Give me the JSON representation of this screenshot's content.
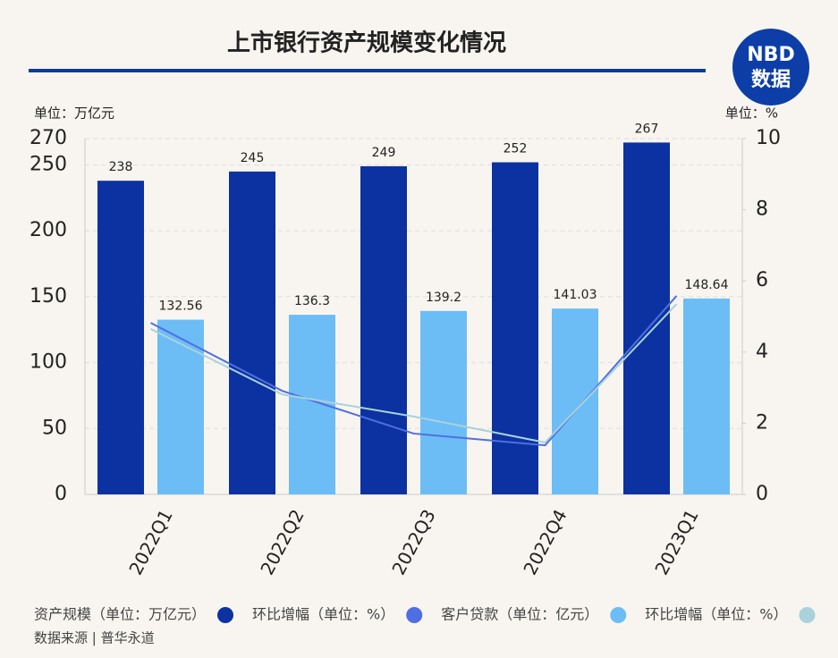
{
  "chart_data": {
    "type": "bar",
    "title": "上市银行资产规模变化情况",
    "y_label": "单位：万亿元",
    "y2_label": "单位：%",
    "categories": [
      "2022Q1",
      "2022Q2",
      "2022Q3",
      "2022Q4",
      "2023Q1"
    ],
    "series": [
      {
        "name": "资产规模（单位：万亿元）",
        "color": "#0b32a0",
        "values": [
          238,
          245,
          249,
          252,
          267
        ]
      },
      {
        "name": "环比增幅（单位：%）",
        "color": "#4f6ee3",
        "axis": "y2",
        "values": [
          4.82,
          2.91,
          1.71,
          1.38,
          5.58
        ]
      },
      {
        "name": "客户贷款（单位：亿元）",
        "color": "#6cbdf5",
        "values": [
          132.56,
          136.3,
          139.2,
          141.03,
          148.64
        ]
      },
      {
        "name": "环比增幅（单位：%）",
        "color": "#a9d2db",
        "axis": "y2",
        "values": [
          4.65,
          2.81,
          2.19,
          1.46,
          5.35
        ]
      }
    ],
    "ylim": [
      0,
      270
    ],
    "yticks": [
      0,
      50,
      100,
      150,
      200,
      250,
      270
    ],
    "y2lim": [
      0,
      10
    ],
    "y2ticks": [
      0,
      2,
      4,
      6,
      8,
      10
    ],
    "grid": true,
    "source": "数据来源 | 普华永道"
  },
  "logo": {
    "brand": "NBD",
    "sub": "数据"
  }
}
